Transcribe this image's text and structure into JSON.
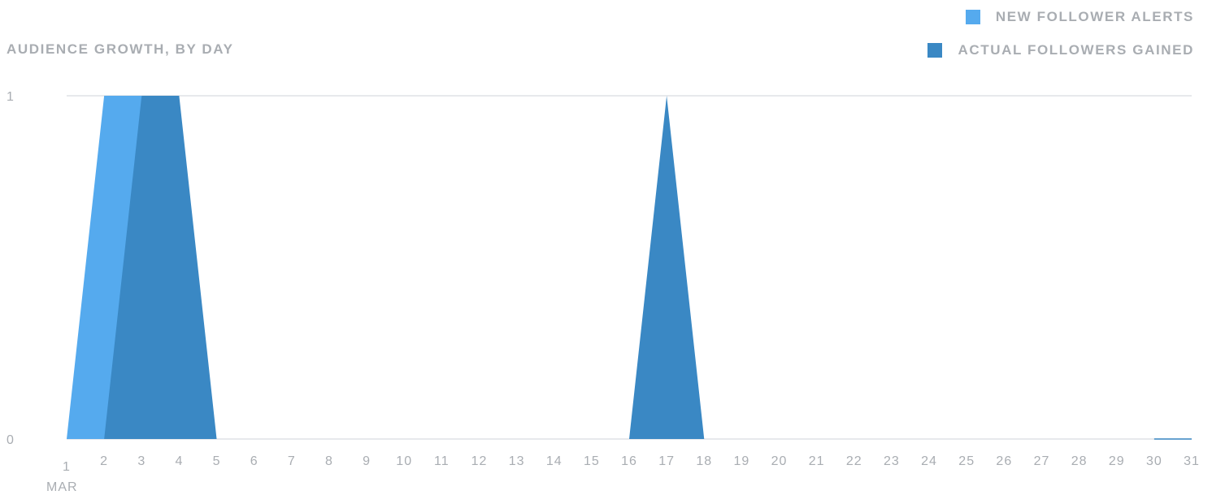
{
  "chart_data": {
    "type": "area",
    "title": "AUDIENCE GROWTH, BY DAY",
    "x": [
      1,
      2,
      3,
      4,
      5,
      6,
      7,
      8,
      9,
      10,
      11,
      12,
      13,
      14,
      15,
      16,
      17,
      18,
      19,
      20,
      21,
      22,
      23,
      24,
      25,
      26,
      27,
      28,
      29,
      30,
      31
    ],
    "x_tick_labels": [
      "1",
      "2",
      "3",
      "4",
      "5",
      "6",
      "7",
      "8",
      "9",
      "10",
      "11",
      "12",
      "13",
      "14",
      "15",
      "16",
      "17",
      "18",
      "19",
      "20",
      "21",
      "22",
      "23",
      "24",
      "25",
      "26",
      "27",
      "28",
      "29",
      "30",
      "31"
    ],
    "x_sublabel": "MAR",
    "ylim": [
      0,
      1
    ],
    "y_ticks": [
      0,
      1
    ],
    "grid": true,
    "legend_position": "top-right",
    "series": [
      {
        "name": "NEW FOLLOWER ALERTS",
        "color": "#55aaee",
        "values": [
          0,
          1,
          1,
          0,
          0,
          0,
          0,
          0,
          0,
          0,
          0,
          0,
          0,
          0,
          0,
          0,
          0,
          0,
          0,
          0,
          0,
          0,
          0,
          0,
          0,
          0,
          0,
          0,
          0,
          0,
          0
        ]
      },
      {
        "name": "ACTUAL FOLLOWERS GAINED",
        "color": "#3a88c4",
        "values": [
          0,
          0,
          1,
          1,
          0,
          0,
          0,
          0,
          0,
          0,
          0,
          0,
          0,
          0,
          0,
          0,
          1,
          0,
          0,
          0,
          0,
          0,
          0,
          0,
          0,
          0,
          0,
          0,
          0,
          0,
          0
        ]
      }
    ],
    "gridline_color": "#dfe2e6",
    "tick_color": "#a9adb2"
  }
}
